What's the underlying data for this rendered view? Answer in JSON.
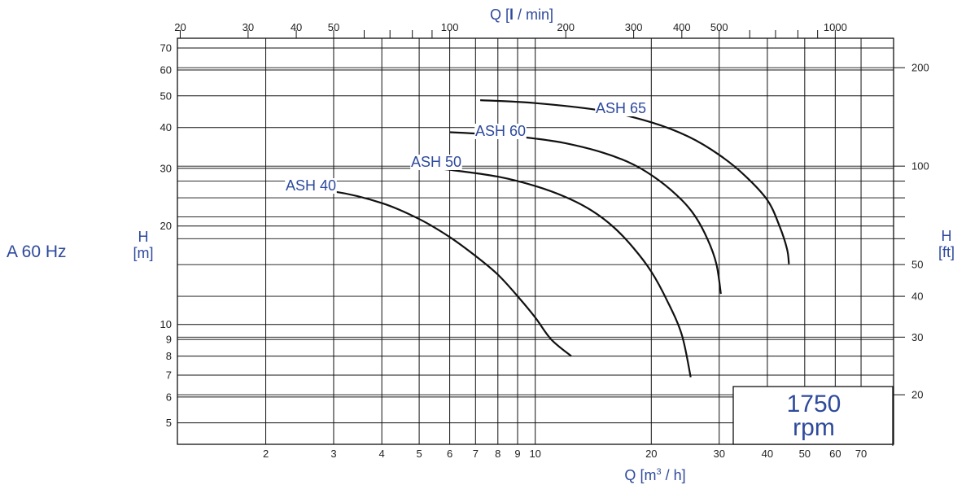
{
  "frequency_label": "A 60 Hz",
  "speed": {
    "value": "1750",
    "unit": "rpm"
  },
  "colors": {
    "text": "#2e4a9c",
    "grid": "#111111",
    "curve": "#111111"
  },
  "chart_data": {
    "type": "line",
    "title": "",
    "x_scale": "log",
    "y_scale": "log",
    "grid": true,
    "xlabel": {
      "symbol": "Q",
      "unit_open": " [m",
      "unit_sup": "3",
      "unit_close": " / h]"
    },
    "ylabel": {
      "symbol": "H",
      "unit": "[m]"
    },
    "x2label": {
      "symbol": "Q",
      "bracket_open": " [",
      "unit_bold": "l",
      "unit_rest": " / min]"
    },
    "y2label": {
      "symbol": "H",
      "unit": "[ft]"
    },
    "xlim": [
      1.18,
      85
    ],
    "ylim": [
      4.3,
      75
    ],
    "x_ticks": [
      {
        "v": 2,
        "label": "2"
      },
      {
        "v": 3,
        "label": "3"
      },
      {
        "v": 4,
        "label": "4"
      },
      {
        "v": 5,
        "label": "5"
      },
      {
        "v": 6,
        "label": "6"
      },
      {
        "v": 7,
        "label": "7"
      },
      {
        "v": 8,
        "label": "8"
      },
      {
        "v": 9,
        "label": "9"
      },
      {
        "v": 10,
        "label": "10"
      },
      {
        "v": 20,
        "label": "20"
      },
      {
        "v": 30,
        "label": "30"
      },
      {
        "v": 40,
        "label": "40"
      },
      {
        "v": 50,
        "label": "50"
      },
      {
        "v": 60,
        "label": "60"
      },
      {
        "v": 70,
        "label": "70"
      }
    ],
    "y_ticks": [
      {
        "v": 5,
        "label": "5"
      },
      {
        "v": 6,
        "label": "6"
      },
      {
        "v": 7,
        "label": "7"
      },
      {
        "v": 8,
        "label": "8"
      },
      {
        "v": 9,
        "label": "9"
      },
      {
        "v": 10,
        "label": "10"
      },
      {
        "v": 20,
        "label": "20"
      },
      {
        "v": 30,
        "label": "30"
      },
      {
        "v": 40,
        "label": "40"
      },
      {
        "v": 50,
        "label": "50"
      },
      {
        "v": 60,
        "label": "60"
      },
      {
        "v": 70,
        "label": "70"
      }
    ],
    "x2_ticks": [
      {
        "v": 20,
        "label": "20"
      },
      {
        "v": 30,
        "label": "30"
      },
      {
        "v": 40,
        "label": "40"
      },
      {
        "v": 50,
        "label": "50"
      },
      {
        "v": 60,
        "label": ""
      },
      {
        "v": 70,
        "label": ""
      },
      {
        "v": 80,
        "label": ""
      },
      {
        "v": 90,
        "label": ""
      },
      {
        "v": 100,
        "label": "100"
      },
      {
        "v": 200,
        "label": "200"
      },
      {
        "v": 300,
        "label": "300"
      },
      {
        "v": 400,
        "label": "400"
      },
      {
        "v": 500,
        "label": "500"
      },
      {
        "v": 600,
        "label": ""
      },
      {
        "v": 700,
        "label": ""
      },
      {
        "v": 800,
        "label": ""
      },
      {
        "v": 900,
        "label": ""
      },
      {
        "v": 1000,
        "label": "1000"
      }
    ],
    "y2_ticks": [
      {
        "v": 20,
        "label": "20"
      },
      {
        "v": 30,
        "label": "30"
      },
      {
        "v": 40,
        "label": "40"
      },
      {
        "v": 50,
        "label": "50"
      },
      {
        "v": 60,
        "label": ""
      },
      {
        "v": 70,
        "label": ""
      },
      {
        "v": 80,
        "label": ""
      },
      {
        "v": 90,
        "label": ""
      },
      {
        "v": 100,
        "label": "100"
      },
      {
        "v": 200,
        "label": "200"
      }
    ],
    "series": [
      {
        "name": "ASH 40",
        "points": [
          [
            2.25,
            26
          ],
          [
            3,
            25.5
          ],
          [
            4,
            23.5
          ],
          [
            5,
            21
          ],
          [
            6,
            18.5
          ],
          [
            7,
            16.2
          ],
          [
            8,
            14.2
          ],
          [
            9,
            12.2
          ],
          [
            10,
            10.5
          ],
          [
            11,
            9
          ],
          [
            12.4,
            8
          ]
        ]
      },
      {
        "name": "ASH 50",
        "points": [
          [
            4.8,
            30.5
          ],
          [
            6,
            29.7
          ],
          [
            8,
            28.3
          ],
          [
            10,
            26.5
          ],
          [
            12,
            24.5
          ],
          [
            14,
            22.3
          ],
          [
            16,
            19.8
          ],
          [
            18,
            17.1
          ],
          [
            20,
            14.5
          ],
          [
            22,
            11.8
          ],
          [
            24,
            9.3
          ],
          [
            25.3,
            6.9
          ]
        ]
      },
      {
        "name": "ASH 60",
        "points": [
          [
            6,
            38.7
          ],
          [
            8,
            38
          ],
          [
            10,
            37
          ],
          [
            12,
            35.8
          ],
          [
            15,
            33.5
          ],
          [
            18,
            30.8
          ],
          [
            21,
            27.5
          ],
          [
            24,
            24
          ],
          [
            26,
            21.4
          ],
          [
            28,
            18.2
          ],
          [
            29.5,
            15.3
          ],
          [
            30.3,
            12.4
          ]
        ]
      },
      {
        "name": "ASH 65",
        "points": [
          [
            7.2,
            48.5
          ],
          [
            10,
            47.5
          ],
          [
            15,
            45
          ],
          [
            20,
            41.5
          ],
          [
            25,
            37.5
          ],
          [
            30,
            33
          ],
          [
            35,
            28.5
          ],
          [
            40,
            24
          ],
          [
            43,
            20
          ],
          [
            45,
            17
          ],
          [
            45.5,
            15.3
          ]
        ]
      }
    ]
  }
}
